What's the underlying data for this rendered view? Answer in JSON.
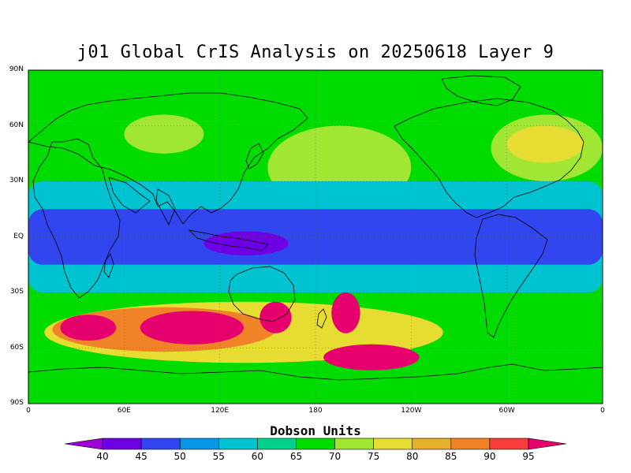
{
  "title": "j01 Global CrIS Analysis on 20250618 Layer 9",
  "lat_labels": [
    "90N",
    "60N",
    "30N",
    "EQ",
    "30S",
    "60S",
    "90S"
  ],
  "lon_labels": [
    "0",
    "60E",
    "120E",
    "180",
    "120W",
    "60W",
    "0"
  ],
  "colorbar": {
    "title": "Dobson Units",
    "labels": [
      "40",
      "45",
      "50",
      "55",
      "60",
      "65",
      "70",
      "75",
      "80",
      "85",
      "90",
      "95"
    ],
    "colors": [
      "#9f00d7",
      "#6e00e6",
      "#3246f0",
      "#0a96e6",
      "#00c3d2",
      "#00d28c",
      "#00dc00",
      "#a0e632",
      "#e6dc32",
      "#e6af2d",
      "#f08228",
      "#fa3c3c",
      "#e6006e"
    ]
  },
  "map": {
    "lon_range": [
      0,
      360
    ],
    "lat_range": [
      -90,
      90
    ],
    "background_color": "#00dc00",
    "regions": [
      {
        "name": "polar-north-band",
        "lon0": 0,
        "lon1": 360,
        "lat0": 66,
        "lat1": 90,
        "level": 6
      },
      {
        "name": "n-pacific-light",
        "lon0": 150,
        "lon1": 240,
        "lat0": 15,
        "lat1": 60,
        "level": 7
      },
      {
        "name": "n-atlantic-light",
        "lon0": 290,
        "lon1": 360,
        "lat0": 30,
        "lat1": 66,
        "level": 7
      },
      {
        "name": "n-america-yellow",
        "lon0": 300,
        "lon1": 348,
        "lat0": 40,
        "lat1": 60,
        "level": 8
      },
      {
        "name": "siberia-yellow",
        "lon0": 60,
        "lon1": 110,
        "lat0": 45,
        "lat1": 66,
        "level": 7
      },
      {
        "name": "tropics-cyan",
        "lon0": 0,
        "lon1": 360,
        "lat0": -30,
        "lat1": 30,
        "level": 4
      },
      {
        "name": "tropics-blue",
        "lon0": 0,
        "lon1": 360,
        "lat0": -15,
        "lat1": 15,
        "level": 2
      },
      {
        "name": "indonesia-purple",
        "lon0": 110,
        "lon1": 163,
        "lat0": -10,
        "lat1": 3,
        "level": 1
      },
      {
        "name": "s-midlat-green",
        "lon0": 0,
        "lon1": 360,
        "lat0": -72,
        "lat1": -30,
        "level": 6
      },
      {
        "name": "s-midlat-yellow",
        "lon0": 10,
        "lon1": 260,
        "lat0": -68,
        "lat1": -35,
        "level": 8
      },
      {
        "name": "s-indian-orange",
        "lon0": 15,
        "lon1": 155,
        "lat0": -62,
        "lat1": -38,
        "level": 10
      },
      {
        "name": "s-indian-max-1",
        "lon0": 20,
        "lon1": 55,
        "lat0": -56,
        "lat1": -42,
        "level": 12
      },
      {
        "name": "s-indian-max-2",
        "lon0": 70,
        "lon1": 135,
        "lat0": -58,
        "lat1": -40,
        "level": 12
      },
      {
        "name": "tasman-max",
        "lon0": 145,
        "lon1": 165,
        "lat0": -52,
        "lat1": -35,
        "level": 12
      },
      {
        "name": "s-pacific-max",
        "lon0": 190,
        "lon1": 208,
        "lat0": -52,
        "lat1": -30,
        "level": 12
      },
      {
        "name": "s-ocean-max",
        "lon0": 185,
        "lon1": 245,
        "lat0": -72,
        "lat1": -58,
        "level": 12
      },
      {
        "name": "antarctic-green",
        "lon0": 0,
        "lon1": 360,
        "lat0": -90,
        "lat1": -75,
        "level": 6
      }
    ]
  }
}
